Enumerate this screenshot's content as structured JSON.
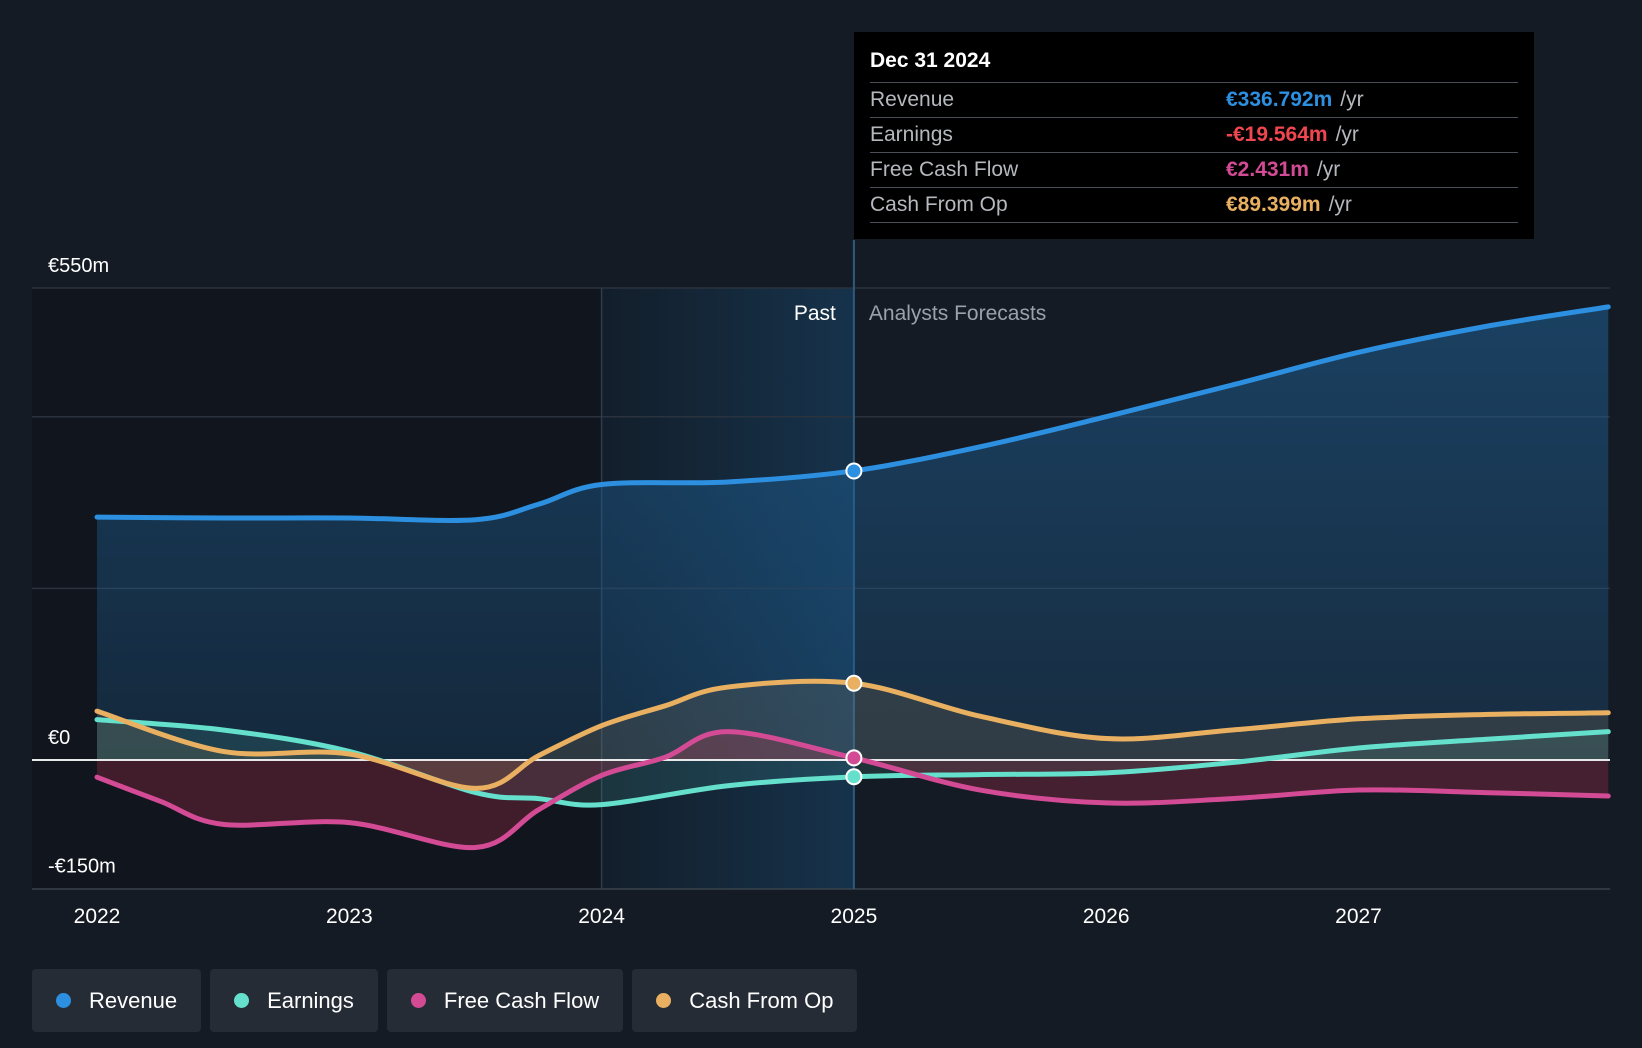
{
  "chart_data": {
    "type": "line",
    "x_ticks": [
      "2022",
      "2023",
      "2024",
      "2025",
      "2026",
      "2027"
    ],
    "y_labels": [
      "€550m",
      "€0",
      "-€150m"
    ],
    "ylim": [
      -150,
      550
    ],
    "xlim": [
      2021.75,
      2027.99
    ],
    "past_label": "Past",
    "forecast_label": "Analysts Forecasts",
    "divider_year": 2025.0,
    "highlight_start_year": 2024.0,
    "series": [
      {
        "name": "Revenue",
        "color": "#2d8fe0",
        "points": [
          [
            2022.0,
            283
          ],
          [
            2022.5,
            282
          ],
          [
            2023.0,
            282
          ],
          [
            2023.5,
            280
          ],
          [
            2023.75,
            298
          ],
          [
            2024.0,
            321
          ],
          [
            2024.5,
            324
          ],
          [
            2025.0,
            337
          ],
          [
            2025.5,
            365
          ],
          [
            2026.0,
            400
          ],
          [
            2026.5,
            437
          ],
          [
            2027.0,
            475
          ],
          [
            2027.5,
            505
          ],
          [
            2027.99,
            528
          ]
        ]
      },
      {
        "name": "Earnings",
        "color": "#64e0cc",
        "points": [
          [
            2022.0,
            47
          ],
          [
            2022.5,
            35
          ],
          [
            2023.0,
            10
          ],
          [
            2023.5,
            -38
          ],
          [
            2023.75,
            -45
          ],
          [
            2024.0,
            -52
          ],
          [
            2024.5,
            -30
          ],
          [
            2025.0,
            -19.6
          ],
          [
            2025.5,
            -17
          ],
          [
            2026.0,
            -15
          ],
          [
            2026.5,
            -3
          ],
          [
            2027.0,
            14
          ],
          [
            2027.5,
            24
          ],
          [
            2027.99,
            33
          ]
        ]
      },
      {
        "name": "Free Cash Flow",
        "color": "#d34b95",
        "points": [
          [
            2022.0,
            -20
          ],
          [
            2022.25,
            -48
          ],
          [
            2022.5,
            -75
          ],
          [
            2023.0,
            -73
          ],
          [
            2023.5,
            -102
          ],
          [
            2023.75,
            -58
          ],
          [
            2024.0,
            -18
          ],
          [
            2024.25,
            3
          ],
          [
            2024.5,
            33
          ],
          [
            2025.0,
            2.4
          ],
          [
            2025.5,
            -35
          ],
          [
            2026.0,
            -50
          ],
          [
            2026.5,
            -45
          ],
          [
            2027.0,
            -35
          ],
          [
            2027.5,
            -38
          ],
          [
            2027.99,
            -42
          ]
        ]
      },
      {
        "name": "Cash From Op",
        "color": "#e8b060",
        "points": [
          [
            2022.0,
            57
          ],
          [
            2022.5,
            10
          ],
          [
            2023.0,
            7
          ],
          [
            2023.5,
            -33
          ],
          [
            2023.75,
            5
          ],
          [
            2024.0,
            40
          ],
          [
            2024.25,
            63
          ],
          [
            2024.5,
            85
          ],
          [
            2025.0,
            89.4
          ],
          [
            2025.5,
            51
          ],
          [
            2026.0,
            25
          ],
          [
            2026.5,
            35
          ],
          [
            2027.0,
            48
          ],
          [
            2027.5,
            53
          ],
          [
            2027.99,
            55
          ]
        ]
      }
    ],
    "highlight_points": [
      {
        "series": "Revenue",
        "x": 2025.0,
        "y": 336.792
      },
      {
        "series": "Cash From Op",
        "x": 2025.0,
        "y": 89.399
      },
      {
        "series": "Free Cash Flow",
        "x": 2025.0,
        "y": 2.431
      },
      {
        "series": "Earnings",
        "x": 2025.0,
        "y": -19.564
      }
    ]
  },
  "tooltip": {
    "date": "Dec 31 2024",
    "unit": "/yr",
    "rows": [
      {
        "label": "Revenue",
        "value": "€336.792m",
        "color": "#2d8fe0"
      },
      {
        "label": "Earnings",
        "value": "-€19.564m",
        "color": "#f0464f"
      },
      {
        "label": "Free Cash Flow",
        "value": "€2.431m",
        "color": "#d34b95"
      },
      {
        "label": "Cash From Op",
        "value": "€89.399m",
        "color": "#e8b060"
      }
    ]
  },
  "legend": [
    {
      "label": "Revenue",
      "color": "#2d8fe0"
    },
    {
      "label": "Earnings",
      "color": "#64e0cc"
    },
    {
      "label": "Free Cash Flow",
      "color": "#d34b95"
    },
    {
      "label": "Cash From Op",
      "color": "#e8b060"
    }
  ]
}
